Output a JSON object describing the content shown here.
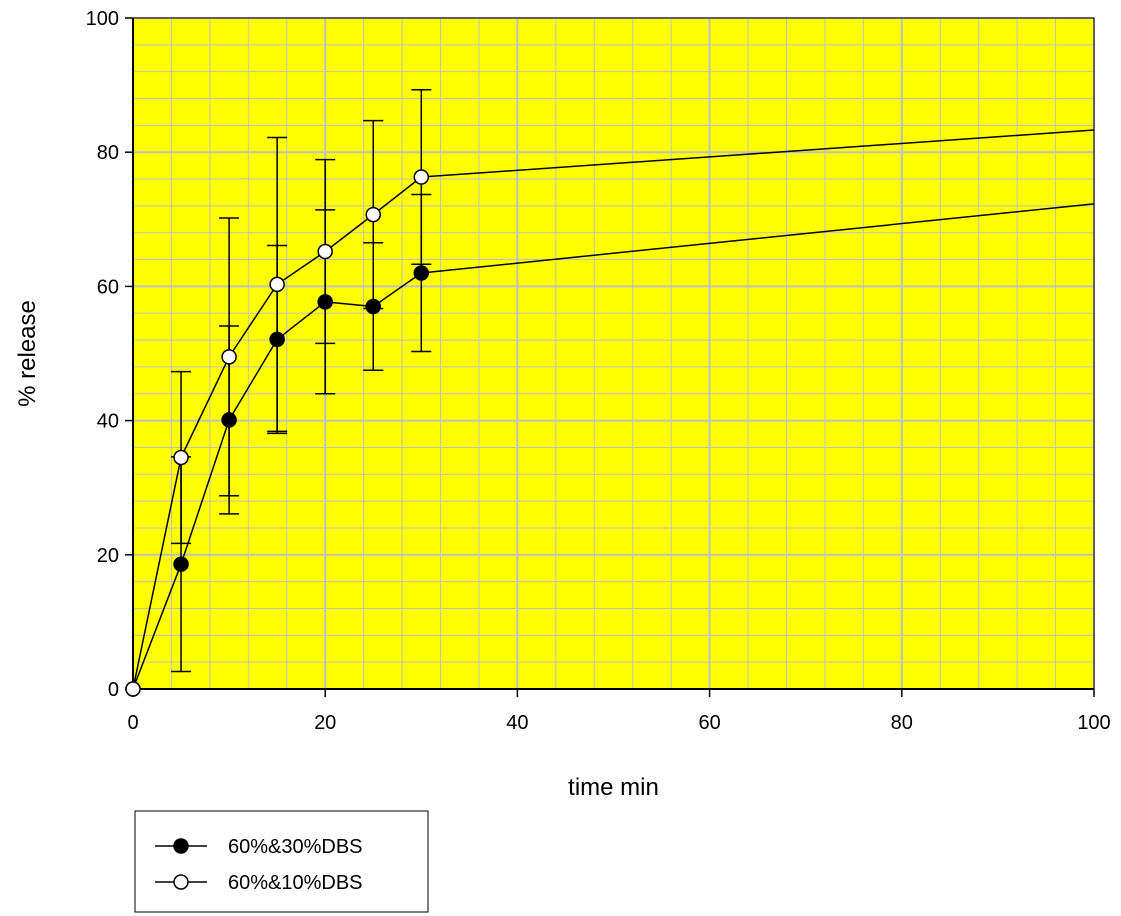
{
  "chart_data": {
    "type": "line",
    "xlabel": "time min",
    "ylabel": "% release",
    "xlim": [
      0,
      100
    ],
    "ylim": [
      0,
      100
    ],
    "xticks": [
      0,
      20,
      40,
      60,
      80,
      100
    ],
    "yticks": [
      0,
      20,
      40,
      60,
      80,
      100
    ],
    "x_minor_step": 4,
    "y_minor_step": 4,
    "grid": true,
    "plot_background": "#ffff00",
    "grid_color": "#c0c0c0",
    "legend_position": "bottom-left, below plot",
    "series": [
      {
        "name": "60%&30%DBS",
        "marker": "filled-circle",
        "x": [
          0,
          5,
          10,
          15,
          20,
          25,
          30,
          100
        ],
        "y": [
          0,
          18.6,
          40.1,
          52.1,
          57.7,
          57.0,
          62.0,
          72.3
        ],
        "error": [
          null,
          16.0,
          14.0,
          14.0,
          13.7,
          9.5,
          11.7,
          null
        ]
      },
      {
        "name": "60%&10%DBS",
        "marker": "open-circle",
        "x": [
          0,
          5,
          10,
          15,
          20,
          25,
          30,
          100
        ],
        "y": [
          0,
          34.5,
          49.5,
          60.3,
          65.2,
          70.7,
          76.3,
          83.3
        ],
        "error": [
          null,
          12.8,
          20.7,
          21.9,
          13.7,
          14.0,
          13.0,
          null
        ]
      }
    ]
  }
}
